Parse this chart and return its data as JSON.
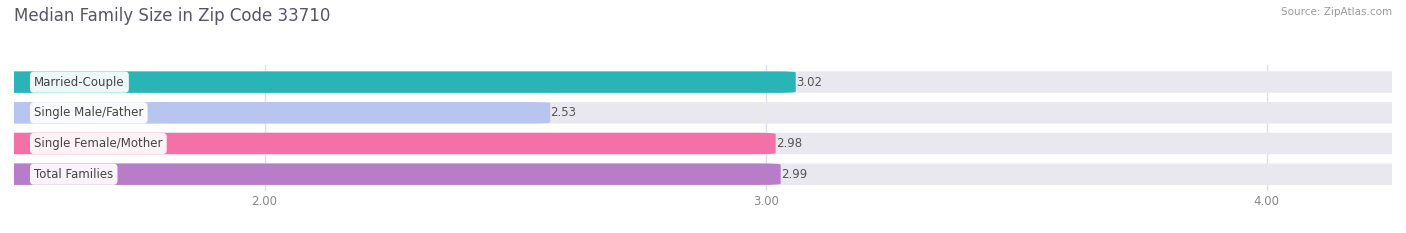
{
  "title": "Median Family Size in Zip Code 33710",
  "source": "Source: ZipAtlas.com",
  "categories": [
    "Married-Couple",
    "Single Male/Father",
    "Single Female/Mother",
    "Total Families"
  ],
  "values": [
    3.02,
    2.53,
    2.98,
    2.99
  ],
  "bar_colors": [
    "#29b5b5",
    "#b8c5ef",
    "#f272a8",
    "#b87dc8"
  ],
  "xlim_left": 1.5,
  "xlim_right": 4.25,
  "xticks": [
    2.0,
    3.0,
    4.0
  ],
  "xtick_labels": [
    "2.00",
    "3.00",
    "4.00"
  ],
  "bar_height": 0.62,
  "label_fontsize": 8.5,
  "title_fontsize": 12,
  "value_fontsize": 8.5,
  "bg_color": "#ffffff",
  "bar_bg_color": "#e8e8ee",
  "title_color": "#555566",
  "source_color": "#999999",
  "value_color": "#555555",
  "label_color": "#444444",
  "gridline_color": "#ddddee"
}
